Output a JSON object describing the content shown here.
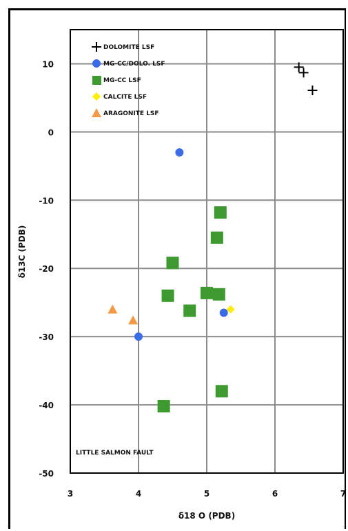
{
  "chart_data": {
    "type": "scatter",
    "title": "",
    "xlabel": "δ18 O (PDB)",
    "ylabel": "δ13C (PDB)",
    "xlim": [
      3,
      7
    ],
    "ylim": [
      -50,
      15
    ],
    "x_ticks": [
      "3",
      "4",
      "5",
      "6",
      "7"
    ],
    "y_ticks": [
      "10",
      "0",
      "-10",
      "-20",
      "-30",
      "-40",
      "-50"
    ],
    "grid": true,
    "legend_position": "top-left",
    "annotation": "LITTLE SALMON FAULT",
    "series": [
      {
        "name": "DOLOMITE LSF",
        "marker": "plus",
        "color": "#000000",
        "points": [
          [
            6.35,
            9.5
          ],
          [
            6.42,
            8.7
          ],
          [
            6.55,
            6.1
          ]
        ]
      },
      {
        "name": "MG-CC/DOLO. LSF",
        "marker": "circle",
        "color": "#3a6be8",
        "points": [
          [
            4.6,
            -3.0
          ],
          [
            5.25,
            -26.5
          ],
          [
            4.0,
            -30.0
          ]
        ]
      },
      {
        "name": "MG-CC LSF",
        "marker": "square",
        "color": "#3c9a2e",
        "points": [
          [
            5.2,
            -11.8
          ],
          [
            5.15,
            -15.5
          ],
          [
            4.5,
            -19.2
          ],
          [
            4.43,
            -24.0
          ],
          [
            5.0,
            -23.6
          ],
          [
            5.18,
            -23.8
          ],
          [
            4.75,
            -26.2
          ],
          [
            5.22,
            -38.0
          ],
          [
            4.37,
            -40.2
          ]
        ]
      },
      {
        "name": "CALCITE LSF",
        "marker": "diamond",
        "color": "#ffee00",
        "points": [
          [
            5.35,
            -26.0
          ]
        ]
      },
      {
        "name": "ARAGONITE LSF",
        "marker": "triangle",
        "color": "#f49a45",
        "points": [
          [
            3.62,
            -26.0
          ],
          [
            3.92,
            -27.6
          ]
        ]
      }
    ]
  }
}
